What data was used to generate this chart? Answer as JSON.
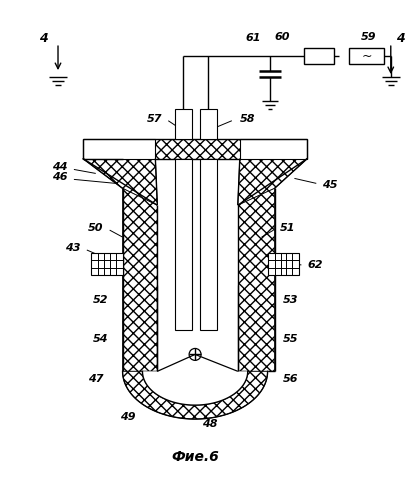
{
  "title": "Фие.6",
  "bg_color": "#ffffff",
  "line_color": "#000000",
  "figsize": [
    4.17,
    4.99
  ],
  "dpi": 100
}
